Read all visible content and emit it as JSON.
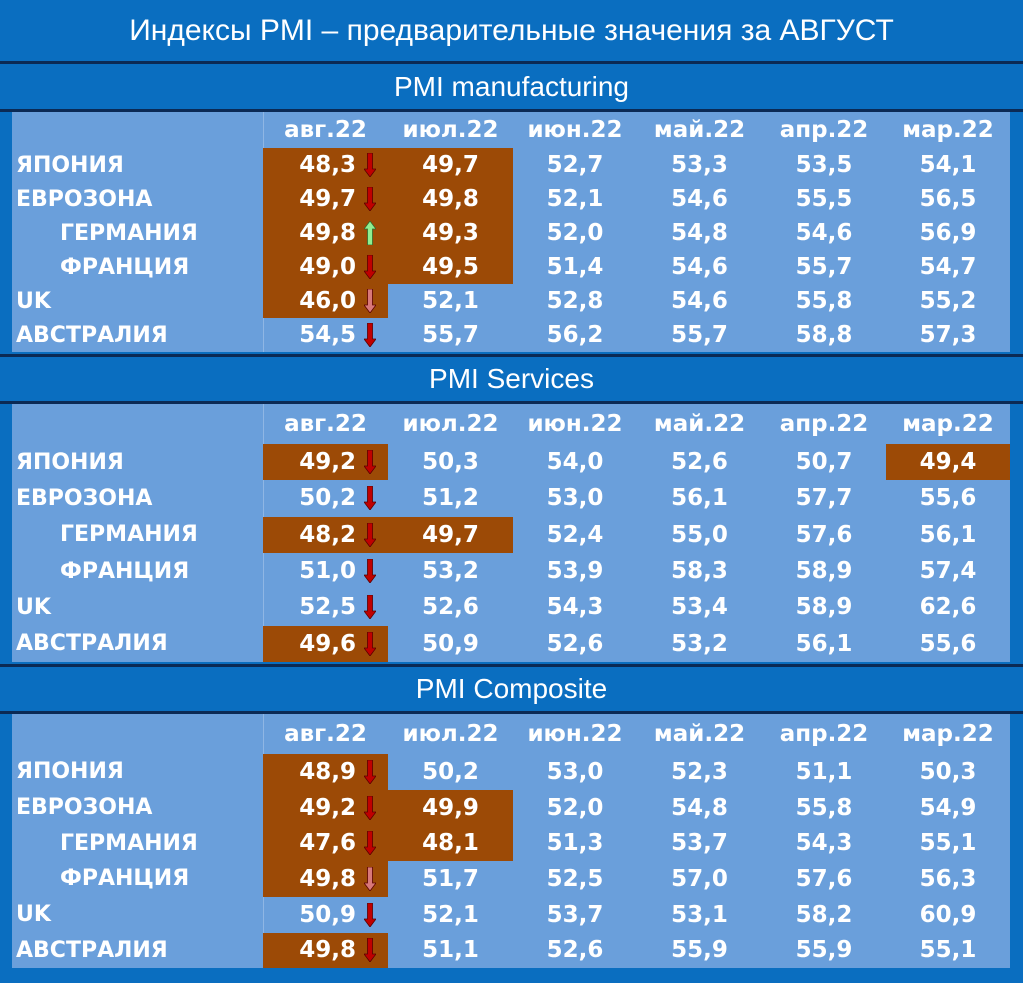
{
  "title": "Индексы PMI – предварительные значения за АВГУСТ",
  "colors": {
    "background": "#0a6ec0",
    "table_bg": "#6a9fdb",
    "highlight": "#9c4a06",
    "arrow_down": "#c00000",
    "arrow_down_light": "#d9787a",
    "arrow_up": "#90ee90"
  },
  "columns": [
    "авг.22",
    "июл.22",
    "июн.22",
    "май.22",
    "апр.22",
    "мар.22"
  ],
  "sections": [
    {
      "title": "PMI manufacturing",
      "rows": [
        {
          "country": "ЯПОНИЯ",
          "indent": false,
          "values": [
            "48,3",
            "49,7",
            "52,7",
            "53,3",
            "53,5",
            "54,1"
          ],
          "arrow": "down",
          "highlight": [
            0,
            1
          ]
        },
        {
          "country": "ЕВРОЗОНА",
          "indent": false,
          "values": [
            "49,7",
            "49,8",
            "52,1",
            "54,6",
            "55,5",
            "56,5"
          ],
          "arrow": "down",
          "highlight": [
            0,
            1
          ]
        },
        {
          "country": "ГЕРМАНИЯ",
          "indent": true,
          "values": [
            "49,8",
            "49,3",
            "52,0",
            "54,8",
            "54,6",
            "56,9"
          ],
          "arrow": "up",
          "highlight": [
            0,
            1
          ]
        },
        {
          "country": "ФРАНЦИЯ",
          "indent": true,
          "values": [
            "49,0",
            "49,5",
            "51,4",
            "54,6",
            "55,7",
            "54,7"
          ],
          "arrow": "down",
          "highlight": [
            0,
            1
          ]
        },
        {
          "country": "UK",
          "indent": false,
          "values": [
            "46,0",
            "52,1",
            "52,8",
            "54,6",
            "55,8",
            "55,2"
          ],
          "arrow": "down-light",
          "highlight": [
            0
          ]
        },
        {
          "country": "АВСТРАЛИЯ",
          "indent": false,
          "values": [
            "54,5",
            "55,7",
            "56,2",
            "55,7",
            "58,8",
            "57,3"
          ],
          "arrow": "down",
          "highlight": []
        }
      ]
    },
    {
      "title": "PMI Services",
      "rows": [
        {
          "country": "ЯПОНИЯ",
          "indent": false,
          "values": [
            "49,2",
            "50,3",
            "54,0",
            "52,6",
            "50,7",
            "49,4"
          ],
          "arrow": "down",
          "highlight": [
            0,
            5
          ]
        },
        {
          "country": "ЕВРОЗОНА",
          "indent": false,
          "values": [
            "50,2",
            "51,2",
            "53,0",
            "56,1",
            "57,7",
            "55,6"
          ],
          "arrow": "down",
          "highlight": []
        },
        {
          "country": "ГЕРМАНИЯ",
          "indent": true,
          "values": [
            "48,2",
            "49,7",
            "52,4",
            "55,0",
            "57,6",
            "56,1"
          ],
          "arrow": "down",
          "highlight": [
            0,
            1
          ]
        },
        {
          "country": "ФРАНЦИЯ",
          "indent": true,
          "values": [
            "51,0",
            "53,2",
            "53,9",
            "58,3",
            "58,9",
            "57,4"
          ],
          "arrow": "down",
          "highlight": []
        },
        {
          "country": "UK",
          "indent": false,
          "values": [
            "52,5",
            "52,6",
            "54,3",
            "53,4",
            "58,9",
            "62,6"
          ],
          "arrow": "down",
          "highlight": []
        },
        {
          "country": "АВСТРАЛИЯ",
          "indent": false,
          "values": [
            "49,6",
            "50,9",
            "52,6",
            "53,2",
            "56,1",
            "55,6"
          ],
          "arrow": "down",
          "highlight": [
            0
          ]
        }
      ]
    },
    {
      "title": "PMI Composite",
      "rows": [
        {
          "country": "ЯПОНИЯ",
          "indent": false,
          "values": [
            "48,9",
            "50,2",
            "53,0",
            "52,3",
            "51,1",
            "50,3"
          ],
          "arrow": "down",
          "highlight": [
            0
          ]
        },
        {
          "country": "ЕВРОЗОНА",
          "indent": false,
          "values": [
            "49,2",
            "49,9",
            "52,0",
            "54,8",
            "55,8",
            "54,9"
          ],
          "arrow": "down",
          "highlight": [
            0,
            1
          ]
        },
        {
          "country": "ГЕРМАНИЯ",
          "indent": true,
          "values": [
            "47,6",
            "48,1",
            "51,3",
            "53,7",
            "54,3",
            "55,1"
          ],
          "arrow": "down",
          "highlight": [
            0,
            1
          ]
        },
        {
          "country": "ФРАНЦИЯ",
          "indent": true,
          "values": [
            "49,8",
            "51,7",
            "52,5",
            "57,0",
            "57,6",
            "56,3"
          ],
          "arrow": "down-light",
          "highlight": [
            0
          ]
        },
        {
          "country": "UK",
          "indent": false,
          "values": [
            "50,9",
            "52,1",
            "53,7",
            "53,1",
            "58,2",
            "60,9"
          ],
          "arrow": "down",
          "highlight": []
        },
        {
          "country": "АВСТРАЛИЯ",
          "indent": false,
          "values": [
            "49,8",
            "51,1",
            "52,6",
            "55,9",
            "55,9",
            "55,1"
          ],
          "arrow": "down",
          "highlight": [
            0
          ]
        }
      ]
    }
  ]
}
